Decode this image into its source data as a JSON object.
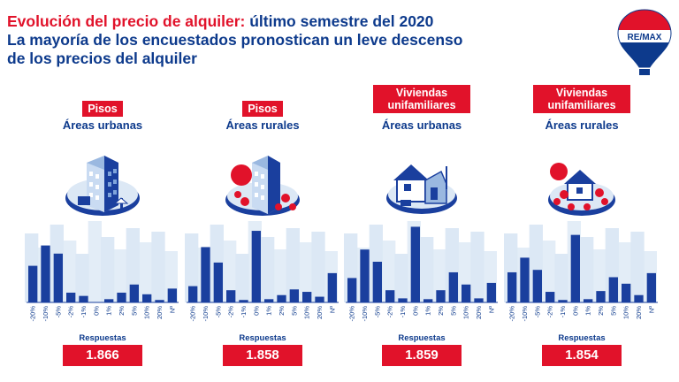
{
  "title": {
    "line1_red": "Evolución del precio de alquiler:",
    "line1_blue": " último semestre del 2020",
    "line2": "La mayoría de los encuestados pronostican un leve descenso",
    "line3": "de los precios del alquiler"
  },
  "logo": {
    "text": "RE/MAX",
    "icon": "hot-air-balloon-logo"
  },
  "colors": {
    "red": "#e1122a",
    "blue": "#0d3a8c",
    "bar": "#1a3f9e",
    "skyline": "#dce8f5"
  },
  "chart_data": [
    {
      "type": "bar",
      "tag": "Pisos",
      "subtitle": "Áreas urbanas",
      "categories": [
        "-20%",
        "-10%",
        "-5%",
        "-2%",
        "-1%",
        "0%",
        "1%",
        "2%",
        "5%",
        "10%",
        "20%",
        "Nº"
      ],
      "values": [
        45,
        70,
        60,
        12,
        8,
        0,
        4,
        12,
        22,
        10,
        3,
        17
      ],
      "response_label": "Respuestas",
      "responses": "1.866"
    },
    {
      "type": "bar",
      "tag": "Pisos",
      "subtitle": "Áreas rurales",
      "categories": [
        "-20%",
        "-10%",
        "-5%",
        "-2%",
        "-1%",
        "0%",
        "1%",
        "2%",
        "5%",
        "10%",
        "20%",
        "Nº"
      ],
      "values": [
        20,
        68,
        49,
        15,
        3,
        88,
        4,
        9,
        16,
        13,
        7,
        36
      ],
      "response_label": "Respuestas",
      "responses": "1.858"
    },
    {
      "type": "bar",
      "tag": "Viviendas unifamiliares",
      "subtitle": "Áreas urbanas",
      "categories": [
        "-20%",
        "-10%",
        "-5%",
        "-2%",
        "-1%",
        "0%",
        "1%",
        "2%",
        "5%",
        "10%",
        "20%",
        "Nº"
      ],
      "values": [
        30,
        65,
        50,
        15,
        5,
        93,
        4,
        15,
        37,
        22,
        5,
        24
      ],
      "response_label": "Respuestas",
      "responses": "1.859"
    },
    {
      "type": "bar",
      "tag": "Viviendas unifamiliares",
      "subtitle": "Áreas rurales",
      "categories": [
        "-20%",
        "-10%",
        "-5%",
        "-2%",
        "-1%",
        "0%",
        "1%",
        "2%",
        "5%",
        "10%",
        "20%",
        "Nº"
      ],
      "values": [
        37,
        55,
        40,
        13,
        3,
        83,
        4,
        14,
        31,
        23,
        9,
        36
      ],
      "response_label": "Respuestas",
      "responses": "1.854"
    }
  ]
}
